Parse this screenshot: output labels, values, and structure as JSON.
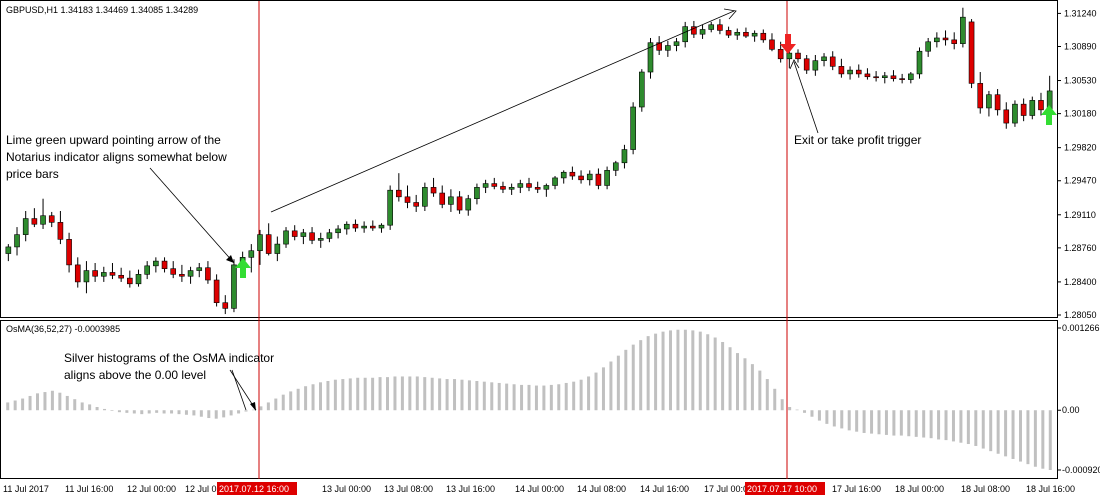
{
  "chart_data": {
    "type": "candlestick",
    "symbol_line": "GBPUSD,H1  1.34183 1.34469 1.34085 1.34289",
    "osma_label": "OsMA(36,52,27) -0.0003985",
    "price_ylim": [
      1.2805,
      1.3135
    ],
    "price_ticks": [
      "1.31240",
      "1.30890",
      "1.30530",
      "1.30180",
      "1.29820",
      "1.29470",
      "1.29110",
      "1.28760",
      "1.28400",
      "1.28050"
    ],
    "osma_ticks": [
      "0.001266",
      "0.00",
      "-0.000920"
    ],
    "osma_ylim": [
      -0.00092,
      0.001266
    ],
    "time_labels": [
      "11 Jul 2017",
      "11 Jul 16:00",
      "12 Jul 00:00",
      "12 Jul 08:00",
      "2017.07.12 16:00",
      "13 Jul 00:00",
      "13 Jul 08:00",
      "13 Jul 16:00",
      "14 Jul 00:00",
      "14 Jul 08:00",
      "14 Jul 16:00",
      "17 Jul 00:00",
      "2017.07.17 10:00",
      "17 Jul 16:00",
      "18 Jul 00:00",
      "18 Jul 08:00",
      "18 Jul 16:00"
    ],
    "highlighted_times": [
      "2017.07.12 16:00",
      "2017.07.17 10:00"
    ],
    "key_candles": [
      {
        "time": "2017.07.12 16:00",
        "role": "buy arrow (lime green, up)"
      },
      {
        "time": "2017.07.17 10:00",
        "role": "sell arrow (red, down)"
      }
    ],
    "osma_series_values": [
      0.00012,
      0.00015,
      0.00018,
      0.00022,
      0.00026,
      0.00028,
      0.0003,
      0.00027,
      0.00022,
      0.00017,
      0.00012,
      9e-05,
      5e-05,
      2e-05,
      -1e-05,
      -3e-05,
      -4e-05,
      -5e-05,
      -6e-05,
      -5e-05,
      -4e-05,
      -5e-05,
      -5e-05,
      -6e-05,
      -7e-05,
      -8e-05,
      -0.0001,
      -0.00012,
      -0.00013,
      -0.00011,
      -8e-05,
      -5e-05,
      -2e-05,
      1e-05,
      6e-05,
      0.00012,
      0.00018,
      0.00024,
      0.00029,
      0.00033,
      0.00037,
      0.0004,
      0.00043,
      0.00045,
      0.00047,
      0.00048,
      0.00049,
      0.0005,
      0.0005,
      0.0005,
      0.00051,
      0.00051,
      0.00052,
      0.00052,
      0.00052,
      0.00052,
      0.00051,
      0.0005,
      0.00049,
      0.00048,
      0.00048,
      0.00047,
      0.00046,
      0.00045,
      0.00044,
      0.00043,
      0.00042,
      0.00041,
      0.0004,
      0.00039,
      0.00039,
      0.00038,
      0.00038,
      0.00039,
      0.0004,
      0.00042,
      0.00044,
      0.00047,
      0.00052,
      0.00058,
      0.00066,
      0.00075,
      0.00084,
      0.00093,
      0.00101,
      0.00108,
      0.00114,
      0.00118,
      0.00121,
      0.00123,
      0.00124,
      0.00124,
      0.00123,
      0.00121,
      0.00117,
      0.00112,
      0.00105,
      0.00097,
      0.00088,
      0.0008,
      0.00071,
      0.00061,
      0.00048,
      0.00033,
      0.00017,
      5e-05,
      1e-05,
      -4e-05,
      -0.0001,
      -0.00016,
      -0.00021,
      -0.00025,
      -0.00028,
      -0.00031,
      -0.00033,
      -0.00035,
      -0.00036,
      -0.00037,
      -0.00038,
      -0.00039,
      -0.00039,
      -0.0004,
      -0.00041,
      -0.00042,
      -0.00043,
      -0.00045,
      -0.00046,
      -0.00048,
      -0.0005,
      -0.00052,
      -0.00055,
      -0.00059,
      -0.00063,
      -0.00067,
      -0.00071,
      -0.00075,
      -0.00079,
      -0.00083,
      -0.00087,
      -0.0009,
      -0.00092
    ],
    "candles": [
      [
        1.287,
        1.288,
        1.2862,
        1.2877
      ],
      [
        1.2877,
        1.2898,
        1.2868,
        1.289
      ],
      [
        1.289,
        1.2915,
        1.2883,
        1.2907
      ],
      [
        1.2907,
        1.2918,
        1.2898,
        1.2901
      ],
      [
        1.2901,
        1.2928,
        1.2896,
        1.291
      ],
      [
        1.291,
        1.2914,
        1.2898,
        1.2903
      ],
      [
        1.2903,
        1.2915,
        1.288,
        1.2885
      ],
      [
        1.2885,
        1.2892,
        1.285,
        1.2858
      ],
      [
        1.2858,
        1.2866,
        1.2834,
        1.284
      ],
      [
        1.284,
        1.2862,
        1.2828,
        1.2852
      ],
      [
        1.2852,
        1.286,
        1.284,
        1.2846
      ],
      [
        1.2846,
        1.2856,
        1.284,
        1.285
      ],
      [
        1.285,
        1.286,
        1.2843,
        1.2847
      ],
      [
        1.2847,
        1.2855,
        1.284,
        1.2844
      ],
      [
        1.2844,
        1.2852,
        1.2834,
        1.2838
      ],
      [
        1.2838,
        1.2853,
        1.2835,
        1.2848
      ],
      [
        1.2848,
        1.2862,
        1.2843,
        1.2857
      ],
      [
        1.2857,
        1.2866,
        1.285,
        1.2862
      ],
      [
        1.2862,
        1.2866,
        1.285,
        1.2854
      ],
      [
        1.2854,
        1.2862,
        1.2844,
        1.2848
      ],
      [
        1.2848,
        1.2858,
        1.284,
        1.2846
      ],
      [
        1.2846,
        1.2856,
        1.2838,
        1.2852
      ],
      [
        1.2852,
        1.286,
        1.2845,
        1.2855
      ],
      [
        1.2855,
        1.2862,
        1.2838,
        1.2842
      ],
      [
        1.2842,
        1.2848,
        1.2814,
        1.2818
      ],
      [
        1.2818,
        1.2826,
        1.2806,
        1.2812
      ],
      [
        1.2812,
        1.2864,
        1.2808,
        1.2858
      ],
      [
        1.2858,
        1.2872,
        1.2845,
        1.2866
      ],
      [
        1.2866,
        1.288,
        1.285,
        1.2873
      ],
      [
        1.2873,
        1.2895,
        1.2858,
        1.289
      ],
      [
        1.289,
        1.2902,
        1.2868,
        1.287
      ],
      [
        1.287,
        1.2888,
        1.2862,
        1.288
      ],
      [
        1.288,
        1.2898,
        1.2876,
        1.2894
      ],
      [
        1.2894,
        1.29,
        1.2884,
        1.2888
      ],
      [
        1.2888,
        1.2896,
        1.288,
        1.2892
      ],
      [
        1.2892,
        1.2898,
        1.288,
        1.2884
      ],
      [
        1.2884,
        1.2892,
        1.2876,
        1.2886
      ],
      [
        1.2886,
        1.2896,
        1.2882,
        1.2892
      ],
      [
        1.2892,
        1.29,
        1.2886,
        1.2896
      ],
      [
        1.2896,
        1.2904,
        1.289,
        1.2901
      ],
      [
        1.2901,
        1.2906,
        1.2893,
        1.2897
      ],
      [
        1.2897,
        1.2904,
        1.2892,
        1.2899
      ],
      [
        1.2899,
        1.2905,
        1.2894,
        1.2897
      ],
      [
        1.2897,
        1.2902,
        1.2892,
        1.29
      ],
      [
        1.29,
        1.2942,
        1.2895,
        1.2937
      ],
      [
        1.2937,
        1.2955,
        1.2925,
        1.293
      ],
      [
        1.293,
        1.2942,
        1.2918,
        1.2924
      ],
      [
        1.2924,
        1.2932,
        1.2914,
        1.292
      ],
      [
        1.292,
        1.2945,
        1.2915,
        1.294
      ],
      [
        1.294,
        1.295,
        1.293,
        1.2934
      ],
      [
        1.2934,
        1.2942,
        1.2918,
        1.2922
      ],
      [
        1.2922,
        1.2938,
        1.2914,
        1.293
      ],
      [
        1.293,
        1.2936,
        1.2912,
        1.2916
      ],
      [
        1.2916,
        1.2932,
        1.291,
        1.2928
      ],
      [
        1.2928,
        1.2944,
        1.2922,
        1.294
      ],
      [
        1.294,
        1.2948,
        1.2934,
        1.2944
      ],
      [
        1.2944,
        1.295,
        1.2938,
        1.2941
      ],
      [
        1.2941,
        1.2946,
        1.2934,
        1.2938
      ],
      [
        1.2938,
        1.2944,
        1.2932,
        1.294
      ],
      [
        1.294,
        1.2948,
        1.2934,
        1.2944
      ],
      [
        1.2944,
        1.295,
        1.2936,
        1.294
      ],
      [
        1.294,
        1.2946,
        1.2934,
        1.2938
      ],
      [
        1.2938,
        1.2944,
        1.293,
        1.2942
      ],
      [
        1.2942,
        1.2952,
        1.2938,
        1.295
      ],
      [
        1.295,
        1.2958,
        1.2944,
        1.2956
      ],
      [
        1.2956,
        1.2962,
        1.2948,
        1.2952
      ],
      [
        1.2952,
        1.2958,
        1.2944,
        1.2948
      ],
      [
        1.2948,
        1.2958,
        1.2942,
        1.2954
      ],
      [
        1.2954,
        1.296,
        1.2938,
        1.2942
      ],
      [
        1.2942,
        1.2962,
        1.2938,
        1.2958
      ],
      [
        1.2958,
        1.2968,
        1.2952,
        1.2966
      ],
      [
        1.2966,
        1.2985,
        1.296,
        1.298
      ],
      [
        1.298,
        1.303,
        1.2975,
        1.3025
      ],
      [
        1.3025,
        1.3065,
        1.302,
        1.3062
      ],
      [
        1.3062,
        1.3098,
        1.3055,
        1.3093
      ],
      [
        1.3093,
        1.31,
        1.308,
        1.3085
      ],
      [
        1.3085,
        1.3095,
        1.3078,
        1.309
      ],
      [
        1.309,
        1.3098,
        1.3084,
        1.3094
      ],
      [
        1.3094,
        1.3115,
        1.3088,
        1.311
      ],
      [
        1.311,
        1.3116,
        1.3098,
        1.3102
      ],
      [
        1.3102,
        1.3112,
        1.3097,
        1.3107
      ],
      [
        1.3107,
        1.3115,
        1.3104,
        1.3112
      ],
      [
        1.3112,
        1.3118,
        1.3102,
        1.3106
      ],
      [
        1.3106,
        1.311,
        1.3098,
        1.3101
      ],
      [
        1.3101,
        1.3108,
        1.3096,
        1.3104
      ],
      [
        1.3104,
        1.3109,
        1.3098,
        1.31
      ],
      [
        1.31,
        1.3106,
        1.3094,
        1.3103
      ],
      [
        1.3103,
        1.3107,
        1.3093,
        1.3096
      ],
      [
        1.3096,
        1.3103,
        1.3084,
        1.3086
      ],
      [
        1.3086,
        1.3094,
        1.3072,
        1.3076
      ],
      [
        1.3076,
        1.3084,
        1.3066,
        1.3082
      ],
      [
        1.3082,
        1.3086,
        1.3072,
        1.3076
      ],
      [
        1.3076,
        1.308,
        1.306,
        1.3064
      ],
      [
        1.3064,
        1.308,
        1.3058,
        1.3074
      ],
      [
        1.3074,
        1.3082,
        1.3068,
        1.3078
      ],
      [
        1.3078,
        1.3084,
        1.3064,
        1.3068
      ],
      [
        1.3068,
        1.3076,
        1.3056,
        1.306
      ],
      [
        1.306,
        1.3068,
        1.3054,
        1.3064
      ],
      [
        1.3064,
        1.307,
        1.3056,
        1.306
      ],
      [
        1.306,
        1.3066,
        1.3054,
        1.3057
      ],
      [
        1.3057,
        1.3063,
        1.3052,
        1.3056
      ],
      [
        1.3056,
        1.3062,
        1.305,
        1.3058
      ],
      [
        1.3058,
        1.3064,
        1.3052,
        1.3055
      ],
      [
        1.3055,
        1.306,
        1.305,
        1.3054
      ],
      [
        1.3054,
        1.3062,
        1.305,
        1.306
      ],
      [
        1.306,
        1.3088,
        1.3055,
        1.3084
      ],
      [
        1.3084,
        1.3098,
        1.3078,
        1.3094
      ],
      [
        1.3094,
        1.3104,
        1.3088,
        1.3098
      ],
      [
        1.3098,
        1.3106,
        1.309,
        1.3096
      ],
      [
        1.3096,
        1.3104,
        1.3086,
        1.3092
      ],
      [
        1.3092,
        1.313,
        1.3088,
        1.312
      ],
      [
        1.3115,
        1.3118,
        1.3045,
        1.305
      ],
      [
        1.305,
        1.3062,
        1.3018,
        1.3024
      ],
      [
        1.3024,
        1.3042,
        1.3015,
        1.3038
      ],
      [
        1.3038,
        1.3044,
        1.3016,
        1.3022
      ],
      [
        1.3022,
        1.303,
        1.3002,
        1.3008
      ],
      [
        1.3008,
        1.3032,
        1.3004,
        1.3028
      ],
      [
        1.3028,
        1.3034,
        1.301,
        1.3016
      ],
      [
        1.3016,
        1.3036,
        1.3012,
        1.3032
      ],
      [
        1.3032,
        1.304,
        1.3016,
        1.3022
      ],
      [
        1.3022,
        1.3058,
        1.3018,
        1.3042
      ]
    ]
  },
  "annotations": {
    "buy_note_lines": [
      "Lime green upward pointing arrow of the",
      "Notarius indicator aligns somewhat below",
      "price bars"
    ],
    "exit_note": "Exit or take profit trigger",
    "osma_note_lines": [
      "Silver histograms of the OsMA indicator",
      "aligns above the 0.00 level"
    ]
  },
  "colors": {
    "bull": "#2e8b2e",
    "bear": "#dd0000",
    "osma": "#c0c0c0",
    "vline": "#cc0000",
    "buy_arrow": "#33dd33",
    "sell_arrow": "#ee2222",
    "highlight_bg": "#dd0000"
  }
}
